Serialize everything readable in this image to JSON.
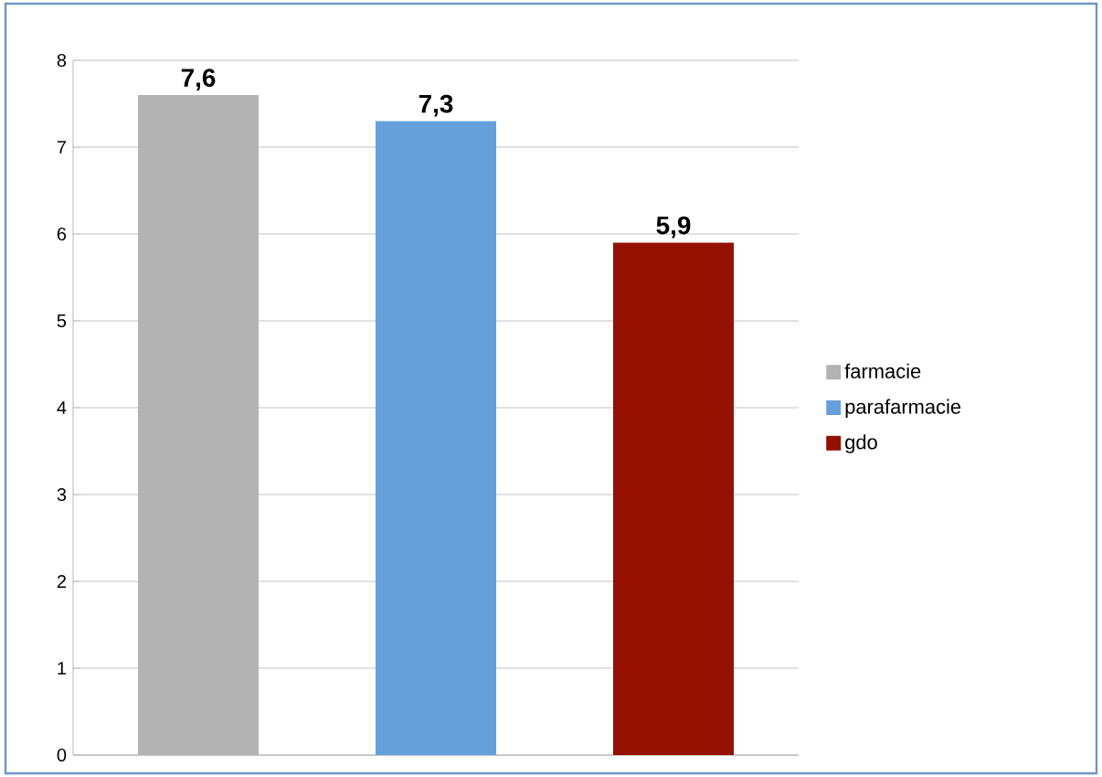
{
  "chart_data": {
    "type": "bar",
    "categories": [
      null
    ],
    "series": [
      {
        "name": "farmacie",
        "color": "#b3b3b3",
        "values": [
          7.6
        ],
        "value_labels": [
          "7,6"
        ]
      },
      {
        "name": "parafarmacie",
        "color": "#65a0dc",
        "values": [
          7.3
        ],
        "value_labels": [
          "7,3"
        ]
      },
      {
        "name": "gdo",
        "color": "#941100",
        "values": [
          5.9
        ],
        "value_labels": [
          "5,9"
        ]
      }
    ],
    "ylim": [
      0,
      8
    ],
    "yticks": [
      0,
      1,
      2,
      3,
      4,
      5,
      6,
      7,
      8
    ],
    "grid": "y",
    "legend": "right",
    "tick_labels": "y"
  }
}
